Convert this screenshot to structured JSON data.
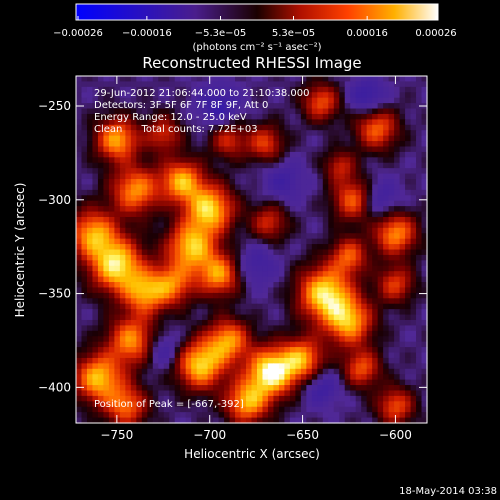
{
  "chart_data": {
    "type": "heatmap",
    "title": "Reconstructed RHESSI Image",
    "xlabel": "Heliocentric X (arcsec)",
    "ylabel": "Heliocentric Y (arcsec)",
    "xlim": [
      -772,
      -583
    ],
    "ylim": [
      -419,
      -234
    ],
    "x_ticks": [
      -750,
      -700,
      -650,
      -600
    ],
    "y_ticks": [
      -250,
      -300,
      -350,
      -400
    ],
    "colorbar": {
      "min": -0.00026,
      "max": 0.00026,
      "tick_values": [
        -0.00026,
        -0.00016,
        -5.3e-05,
        5.3e-05,
        0.00016,
        0.00026
      ],
      "tick_labels": [
        "-0.00026",
        "-0.00016",
        "-5.3e-05",
        "5.3e-05",
        "0.00016",
        "0.00026"
      ],
      "unit_label": "(photons cm⁻² s⁻¹ asec⁻²)"
    },
    "annotations": [
      "29-Jun-2012 21:06:44.000 to 21:10:38.000",
      "Detectors: 3F 5F 6F 7F 8F 9F, Att 0",
      "Energy Range: 12.0 - 25.0 keV",
      "Clean      Total counts: 7.72E+03"
    ],
    "peak_label": "Position of Peak = [-667,-392]",
    "peak": {
      "x": -667,
      "y": -392
    },
    "grid_resolution": 64,
    "sources": [
      {
        "x": -750,
        "y": -268,
        "amp": 0.75,
        "r": 8
      },
      {
        "x": -740,
        "y": -295,
        "amp": 0.7,
        "r": 9
      },
      {
        "x": -763,
        "y": -318,
        "amp": 0.72,
        "r": 9
      },
      {
        "x": -750,
        "y": -335,
        "amp": 0.9,
        "r": 10
      },
      {
        "x": -735,
        "y": -350,
        "amp": 0.65,
        "r": 8
      },
      {
        "x": -742,
        "y": -375,
        "amp": 0.7,
        "r": 9
      },
      {
        "x": -760,
        "y": -395,
        "amp": 0.8,
        "r": 9
      },
      {
        "x": -745,
        "y": -410,
        "amp": 0.6,
        "r": 8
      },
      {
        "x": -725,
        "y": -265,
        "amp": 0.45,
        "r": 7
      },
      {
        "x": -715,
        "y": -290,
        "amp": 0.75,
        "r": 8
      },
      {
        "x": -700,
        "y": -305,
        "amp": 0.85,
        "r": 9
      },
      {
        "x": -710,
        "y": -325,
        "amp": 0.8,
        "r": 9
      },
      {
        "x": -695,
        "y": -340,
        "amp": 0.7,
        "r": 8
      },
      {
        "x": -720,
        "y": -345,
        "amp": 0.6,
        "r": 8
      },
      {
        "x": -705,
        "y": -388,
        "amp": 0.85,
        "r": 9
      },
      {
        "x": -690,
        "y": -375,
        "amp": 0.7,
        "r": 8
      },
      {
        "x": -667,
        "y": -392,
        "amp": 1.0,
        "r": 9
      },
      {
        "x": -680,
        "y": -408,
        "amp": 0.75,
        "r": 8
      },
      {
        "x": -690,
        "y": -268,
        "amp": 0.45,
        "r": 7
      },
      {
        "x": -670,
        "y": -270,
        "amp": 0.5,
        "r": 7
      },
      {
        "x": -668,
        "y": -312,
        "amp": 0.45,
        "r": 7
      },
      {
        "x": -640,
        "y": -248,
        "amp": 0.55,
        "r": 7
      },
      {
        "x": -610,
        "y": -262,
        "amp": 0.6,
        "r": 8
      },
      {
        "x": -630,
        "y": -282,
        "amp": 0.4,
        "r": 6
      },
      {
        "x": -622,
        "y": -300,
        "amp": 0.65,
        "r": 8
      },
      {
        "x": -600,
        "y": -318,
        "amp": 0.7,
        "r": 8
      },
      {
        "x": -625,
        "y": -330,
        "amp": 0.55,
        "r": 7
      },
      {
        "x": -638,
        "y": -350,
        "amp": 0.9,
        "r": 10
      },
      {
        "x": -625,
        "y": -365,
        "amp": 0.75,
        "r": 9
      },
      {
        "x": -650,
        "y": -385,
        "amp": 0.7,
        "r": 8
      },
      {
        "x": -618,
        "y": -390,
        "amp": 0.55,
        "r": 7
      },
      {
        "x": -600,
        "y": -410,
        "amp": 0.55,
        "r": 7
      },
      {
        "x": -600,
        "y": -345,
        "amp": 0.5,
        "r": 7
      },
      {
        "x": -610,
        "y": -300,
        "amp": -0.35,
        "r": 8
      },
      {
        "x": -695,
        "y": -250,
        "amp": -0.35,
        "r": 8
      },
      {
        "x": -615,
        "y": -245,
        "amp": -0.35,
        "r": 7
      },
      {
        "x": -725,
        "y": -380,
        "amp": -0.3,
        "r": 7
      },
      {
        "x": -675,
        "y": -335,
        "amp": -0.25,
        "r": 8
      },
      {
        "x": -640,
        "y": -400,
        "amp": -0.3,
        "r": 7
      },
      {
        "x": -660,
        "y": -290,
        "amp": -0.25,
        "r": 8
      }
    ]
  },
  "footer": {
    "timestamp": "18-May-2014 03:38"
  }
}
